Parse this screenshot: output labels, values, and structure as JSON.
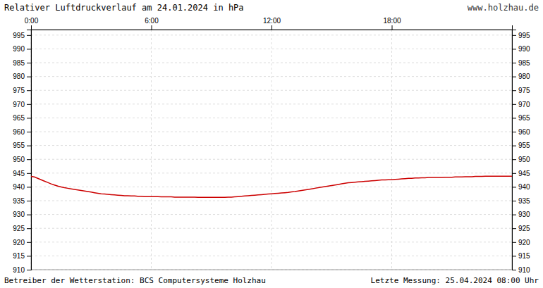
{
  "chart_data": {
    "type": "line",
    "title": "Relativer Luftdruckverlauf am 24.01.2024 in hPa",
    "annotations": [
      "www.holzhau.de",
      "Betreiber der Wetterstation: BCS Computersysteme Holzhau",
      "Letzte Messung: 25.04.2024 08:00 Uhr"
    ],
    "color": "#cc0000",
    "grid": true,
    "xlim": [
      0,
      1440
    ],
    "xticks": [
      {
        "value": 0,
        "label": "0:00"
      },
      {
        "value": 360,
        "label": "6:00"
      },
      {
        "value": 720,
        "label": "12:00"
      },
      {
        "value": 1080,
        "label": "18:00"
      }
    ],
    "ylim": [
      910,
      997
    ],
    "yticks": [
      910,
      915,
      920,
      925,
      930,
      935,
      940,
      945,
      950,
      955,
      960,
      965,
      970,
      975,
      980,
      985,
      990,
      995
    ],
    "y2lim": [
      910,
      997
    ],
    "y2ticks": [
      910,
      915,
      920,
      925,
      930,
      935,
      940,
      945,
      950,
      955,
      960,
      965,
      970,
      975,
      980,
      985,
      990,
      995
    ],
    "x": [
      0,
      10,
      20,
      30,
      40,
      50,
      60,
      70,
      80,
      90,
      100,
      110,
      120,
      130,
      140,
      150,
      160,
      170,
      180,
      190,
      200,
      210,
      220,
      230,
      240,
      250,
      260,
      270,
      280,
      290,
      300,
      310,
      320,
      330,
      340,
      350,
      360,
      370,
      380,
      390,
      400,
      410,
      420,
      430,
      440,
      450,
      460,
      470,
      480,
      490,
      500,
      510,
      520,
      530,
      540,
      550,
      560,
      570,
      580,
      590,
      600,
      610,
      620,
      630,
      640,
      650,
      660,
      670,
      680,
      690,
      700,
      710,
      720,
      730,
      740,
      750,
      760,
      770,
      780,
      790,
      800,
      810,
      820,
      830,
      840,
      850,
      860,
      870,
      880,
      890,
      900,
      910,
      920,
      930,
      940,
      950,
      960,
      970,
      980,
      990,
      1000,
      1010,
      1020,
      1030,
      1040,
      1050,
      1060,
      1070,
      1080,
      1090,
      1100,
      1110,
      1120,
      1130,
      1140,
      1150,
      1160,
      1170,
      1180,
      1190,
      1200,
      1210,
      1220,
      1230,
      1240,
      1250,
      1260,
      1270,
      1280,
      1290,
      1300,
      1310,
      1320,
      1330,
      1340,
      1350,
      1360,
      1370,
      1380,
      1390,
      1400,
      1410,
      1420,
      1430,
      1440
    ],
    "values": [
      943.8,
      943.6,
      943.1,
      942.6,
      942.1,
      941.6,
      941.1,
      940.7,
      940.3,
      940.0,
      939.7,
      939.5,
      939.3,
      939.1,
      938.9,
      938.7,
      938.5,
      938.3,
      938.1,
      937.9,
      937.7,
      937.5,
      937.4,
      937.3,
      937.2,
      937.1,
      937.0,
      936.9,
      936.8,
      936.8,
      936.7,
      936.7,
      936.6,
      936.6,
      936.5,
      936.5,
      936.5,
      936.5,
      936.5,
      936.4,
      936.4,
      936.4,
      936.4,
      936.3,
      936.3,
      936.3,
      936.3,
      936.3,
      936.3,
      936.3,
      936.2,
      936.2,
      936.2,
      936.2,
      936.2,
      936.2,
      936.2,
      936.2,
      936.2,
      936.3,
      936.3,
      936.4,
      936.5,
      936.6,
      936.7,
      936.8,
      936.9,
      937.0,
      937.1,
      937.2,
      937.3,
      937.4,
      937.5,
      937.6,
      937.7,
      937.8,
      937.9,
      938.0,
      938.2,
      938.3,
      938.5,
      938.7,
      938.9,
      939.1,
      939.3,
      939.5,
      939.7,
      939.9,
      940.1,
      940.3,
      940.5,
      940.7,
      940.9,
      941.1,
      941.3,
      941.5,
      941.6,
      941.7,
      941.8,
      941.9,
      942.0,
      942.1,
      942.2,
      942.3,
      942.4,
      942.5,
      942.5,
      942.6,
      942.6,
      942.7,
      942.8,
      942.9,
      943.0,
      943.1,
      943.1,
      943.2,
      943.2,
      943.3,
      943.3,
      943.4,
      943.4,
      943.4,
      943.4,
      943.4,
      943.5,
      943.5,
      943.5,
      943.6,
      943.6,
      943.6,
      943.7,
      943.7,
      943.7,
      943.8,
      943.8,
      943.8,
      943.9,
      943.9,
      943.9,
      943.9,
      943.9,
      943.9,
      943.9,
      943.9,
      943.9
    ]
  }
}
